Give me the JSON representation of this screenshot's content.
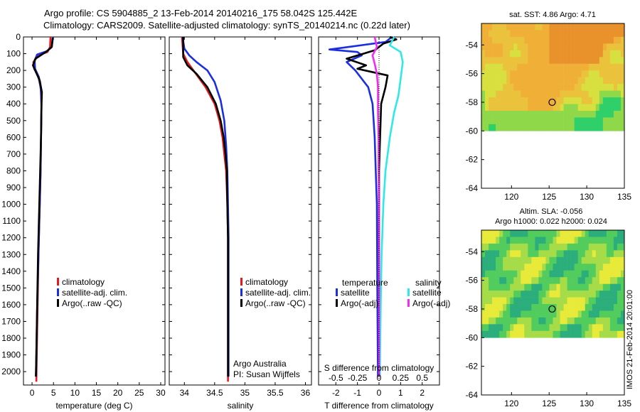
{
  "header": {
    "title_line1": "Argo profile: CS 5904885_2 13-Feb-2014 20140216_175 58.042S 125.442E",
    "title_line2": "Climatology: CARS2009. Satellite-adjusted climatology: synTS_20140214.nc (0.22d later)"
  },
  "colors": {
    "climatology": "#e8191c",
    "satellite": "#1c2fe0",
    "argo": "#000000",
    "sat_salinity": "#30e8e8",
    "argo_salinity": "#f02df0"
  },
  "chart_data": [
    {
      "type": "line",
      "id": "temperature",
      "xlabel": "temperature (deg C)",
      "xlim": [
        -2,
        31
      ],
      "ylim": [
        2080,
        0
      ],
      "xticks": [
        0,
        5,
        10,
        15,
        20,
        25,
        30
      ],
      "yticks": [
        0,
        100,
        200,
        300,
        400,
        500,
        600,
        700,
        800,
        900,
        1000,
        1100,
        1200,
        1300,
        1400,
        1500,
        1600,
        1700,
        1800,
        1900,
        2000
      ],
      "legend": [
        "climatology",
        "satellite-adj. clim.",
        "Argo(..raw -QC)"
      ],
      "series": [
        {
          "name": "climatology",
          "color": "#e8191c",
          "points": [
            [
              4.3,
              0
            ],
            [
              4.2,
              60
            ],
            [
              3.6,
              90
            ],
            [
              1.5,
              110
            ],
            [
              0.3,
              150
            ],
            [
              0.5,
              190
            ],
            [
              1.4,
              230
            ],
            [
              2.0,
              300
            ],
            [
              2.2,
              400
            ],
            [
              2.1,
              600
            ],
            [
              2.0,
              800
            ],
            [
              1.8,
              1000
            ],
            [
              1.5,
              1300
            ],
            [
              1.3,
              1600
            ],
            [
              1.1,
              1900
            ],
            [
              1.0,
              2060
            ]
          ]
        },
        {
          "name": "satellite-adj. clim.",
          "color": "#1c2fe0",
          "points": [
            [
              4.9,
              0
            ],
            [
              4.6,
              60
            ],
            [
              3.5,
              85
            ],
            [
              1.2,
              105
            ],
            [
              0.6,
              140
            ],
            [
              0.7,
              190
            ],
            [
              1.6,
              240
            ],
            [
              2.1,
              320
            ],
            [
              2.2,
              420
            ],
            [
              2.1,
              600
            ],
            [
              2.0,
              800
            ],
            [
              1.8,
              1000
            ],
            [
              1.5,
              1300
            ],
            [
              1.2,
              1600
            ],
            [
              1.0,
              1900
            ],
            [
              0.9,
              2030
            ]
          ]
        },
        {
          "name": "Argo(..raw -QC)",
          "color": "#000000",
          "points": [
            [
              4.8,
              5
            ],
            [
              4.6,
              60
            ],
            [
              3.2,
              90
            ],
            [
              0.8,
              130
            ],
            [
              0.2,
              170
            ],
            [
              0.9,
              210
            ],
            [
              1.8,
              260
            ],
            [
              2.3,
              330
            ],
            [
              2.2,
              420
            ],
            [
              2.1,
              600
            ],
            [
              1.9,
              800
            ],
            [
              1.7,
              1000
            ],
            [
              1.4,
              1300
            ],
            [
              1.2,
              1600
            ],
            [
              1.0,
              1900
            ],
            [
              0.9,
              2030
            ]
          ]
        }
      ]
    },
    {
      "type": "line",
      "id": "salinity",
      "xlabel": "salinity",
      "xlim": [
        33.75,
        36.1
      ],
      "ylim": [
        2080,
        0
      ],
      "xticks": [
        34,
        34.5,
        35,
        35.5,
        36
      ],
      "legend": [
        "climatology",
        "satellite-adj. clim.",
        "Argo(..raw -QC)"
      ],
      "annotation": [
        "Argo Australia",
        "PI: Susan Wijffels"
      ],
      "series": [
        {
          "name": "climatology",
          "color": "#e8191c",
          "points": [
            [
              33.96,
              0
            ],
            [
              33.98,
              100
            ],
            [
              34.05,
              150
            ],
            [
              34.15,
              200
            ],
            [
              34.35,
              300
            ],
            [
              34.5,
              400
            ],
            [
              34.58,
              500
            ],
            [
              34.63,
              600
            ],
            [
              34.66,
              700
            ],
            [
              34.69,
              800
            ],
            [
              34.71,
              1000
            ],
            [
              34.72,
              1200
            ],
            [
              34.72,
              1500
            ],
            [
              34.72,
              1800
            ],
            [
              34.72,
              2060
            ]
          ]
        },
        {
          "name": "satellite-adj. clim.",
          "color": "#1c2fe0",
          "points": [
            [
              33.97,
              0
            ],
            [
              34.0,
              70
            ],
            [
              34.08,
              110
            ],
            [
              34.2,
              150
            ],
            [
              34.38,
              200
            ],
            [
              34.5,
              270
            ],
            [
              34.6,
              380
            ],
            [
              34.66,
              500
            ],
            [
              34.69,
              650
            ],
            [
              34.71,
              800
            ],
            [
              34.72,
              1000
            ],
            [
              34.73,
              1200
            ],
            [
              34.73,
              1500
            ],
            [
              34.73,
              1800
            ],
            [
              34.73,
              2030
            ]
          ]
        },
        {
          "name": "Argo(..raw -QC)",
          "color": "#000000",
          "points": [
            [
              33.98,
              0
            ],
            [
              33.98,
              120
            ],
            [
              34.05,
              170
            ],
            [
              34.2,
              220
            ],
            [
              34.38,
              300
            ],
            [
              34.52,
              400
            ],
            [
              34.6,
              500
            ],
            [
              34.65,
              600
            ],
            [
              34.68,
              700
            ],
            [
              34.7,
              800
            ],
            [
              34.71,
              1000
            ],
            [
              34.72,
              1200
            ],
            [
              34.72,
              1500
            ],
            [
              34.72,
              1800
            ],
            [
              34.72,
              2030
            ]
          ]
        }
      ]
    },
    {
      "type": "line",
      "id": "difference",
      "xlabel": "T difference from climatology",
      "xlabel_top": "S difference from climatology",
      "xlim": [
        -2.8,
        2.8
      ],
      "ylim": [
        2080,
        0
      ],
      "xticks": [
        -2,
        -1,
        0,
        1,
        2
      ],
      "xticks_top": [
        -0.5,
        -0.25,
        0,
        0.25,
        0.5
      ],
      "legend_temperature_title": "temperature",
      "legend_salinity_title": "salinity",
      "legend": [
        "satellite",
        "Argo(-adj)",
        "satellite",
        "Argo(-adj)"
      ],
      "series": [
        {
          "name": "temperature satellite",
          "color": "#1c2fe0",
          "points": [
            [
              0.6,
              0
            ],
            [
              0.3,
              30
            ],
            [
              -1.4,
              60
            ],
            [
              -2.3,
              75
            ],
            [
              -1.0,
              90
            ],
            [
              -0.8,
              110
            ],
            [
              -1.5,
              150
            ],
            [
              -1.1,
              200
            ],
            [
              -0.5,
              300
            ],
            [
              -0.3,
              400
            ],
            [
              -0.2,
              600
            ],
            [
              -0.15,
              800
            ],
            [
              -0.1,
              1000
            ],
            [
              -0.08,
              1500
            ],
            [
              -0.05,
              2030
            ]
          ]
        },
        {
          "name": "temperature Argo(-adj)",
          "color": "#000000",
          "points": [
            [
              0.5,
              0
            ],
            [
              0.8,
              15
            ],
            [
              0.2,
              40
            ],
            [
              -0.2,
              80
            ],
            [
              -1.5,
              130
            ],
            [
              -0.6,
              170
            ],
            [
              -1.0,
              190
            ],
            [
              0.4,
              230
            ],
            [
              0.3,
              300
            ],
            [
              0.1,
              400
            ],
            [
              0.05,
              600
            ],
            [
              0.0,
              800
            ],
            [
              0.0,
              1000
            ],
            [
              0.0,
              1500
            ],
            [
              0.0,
              2030
            ]
          ]
        },
        {
          "name": "salinity satellite",
          "color": "#30e8e8",
          "points": [
            [
              0.7,
              0
            ],
            [
              0.5,
              50
            ],
            [
              1.0,
              90
            ],
            [
              1.1,
              150
            ],
            [
              1.0,
              250
            ],
            [
              0.9,
              350
            ],
            [
              0.7,
              450
            ],
            [
              0.5,
              600
            ],
            [
              0.3,
              800
            ],
            [
              0.2,
              1000
            ],
            [
              0.12,
              1300
            ],
            [
              0.08,
              1600
            ],
            [
              0.05,
              1900
            ],
            [
              0.04,
              2030
            ]
          ]
        },
        {
          "name": "salinity Argo(-adj)",
          "color": "#f02df0",
          "points": [
            [
              -0.2,
              0
            ],
            [
              -0.1,
              60
            ],
            [
              -0.3,
              110
            ],
            [
              -0.2,
              160
            ],
            [
              -0.1,
              220
            ],
            [
              -0.05,
              300
            ],
            [
              -0.05,
              450
            ],
            [
              -0.02,
              600
            ],
            [
              -0.02,
              800
            ],
            [
              0.0,
              1000
            ],
            [
              0.0,
              1300
            ],
            [
              0.0,
              1600
            ],
            [
              0.0,
              1900
            ],
            [
              0.0,
              2030
            ]
          ]
        }
      ]
    },
    {
      "type": "heatmap",
      "id": "sst-map",
      "title": "sat. SST: 4.86 Argo: 4.71",
      "xlim": [
        116,
        135
      ],
      "ylim": [
        -64,
        -52.5
      ],
      "xticks": [
        120,
        125,
        130,
        135
      ],
      "yticks": [
        -54,
        -56,
        -58,
        -60,
        -62,
        -64
      ],
      "marker": [
        125.4,
        -58.0
      ]
    },
    {
      "type": "heatmap",
      "id": "sla-map",
      "title_line1": "Altim. SLA: -0.056",
      "title_line2": "Argo h1000: 0.022 h2000: 0.024",
      "xlim": [
        116,
        135
      ],
      "ylim": [
        -64,
        -52.5
      ],
      "xticks": [
        120,
        125,
        130,
        135
      ],
      "yticks": [
        -54,
        -56,
        -58,
        -60,
        -62,
        -64
      ],
      "marker": [
        125.4,
        -58.0
      ]
    }
  ],
  "footer": {
    "imos_stamp": "IMOS 21-Feb-2014 20:01:00"
  }
}
